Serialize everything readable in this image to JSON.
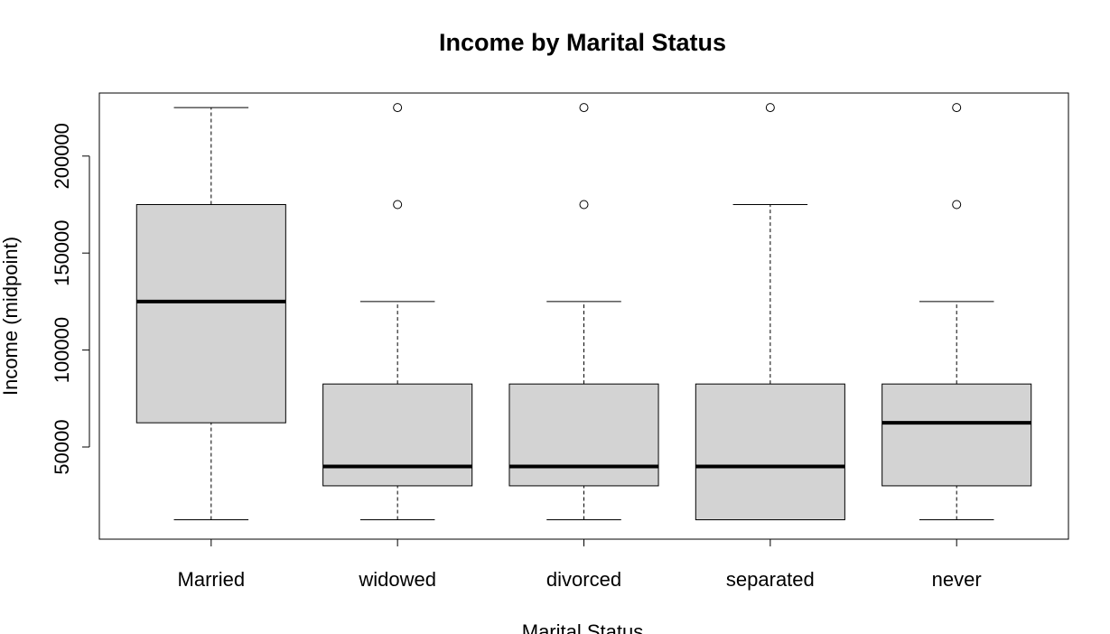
{
  "chart_data": {
    "type": "box",
    "title": "Income by Marital Status",
    "xlabel": "Marital Status",
    "ylabel": "Income (midpoint)",
    "ylim": [
      2500,
      232500
    ],
    "yticks": [
      50000,
      100000,
      150000,
      200000
    ],
    "ytick_labels": [
      "50000",
      "100000",
      "150000",
      "200000"
    ],
    "categories": [
      "Married",
      "widowed",
      "divorced",
      "separated",
      "never"
    ],
    "boxes": [
      {
        "category": "Married",
        "whisker_low": 12500,
        "q1": 62500,
        "median": 125000,
        "q3": 175000,
        "whisker_high": 225000,
        "outliers": []
      },
      {
        "category": "widowed",
        "whisker_low": 12500,
        "q1": 30000,
        "median": 40000,
        "q3": 82500,
        "whisker_high": 125000,
        "outliers": [
          175000,
          225000
        ]
      },
      {
        "category": "divorced",
        "whisker_low": 12500,
        "q1": 30000,
        "median": 40000,
        "q3": 82500,
        "whisker_high": 125000,
        "outliers": [
          175000,
          225000
        ]
      },
      {
        "category": "separated",
        "whisker_low": 12500,
        "q1": 12500,
        "median": 40000,
        "q3": 82500,
        "whisker_high": 175000,
        "outliers": [
          225000
        ]
      },
      {
        "category": "never",
        "whisker_low": 12500,
        "q1": 30000,
        "median": 62500,
        "q3": 82500,
        "whisker_high": 125000,
        "outliers": [
          175000,
          225000
        ]
      }
    ],
    "box_fill": "#d3d3d3",
    "line_color": "#000000",
    "grid": false,
    "legend": "none"
  }
}
